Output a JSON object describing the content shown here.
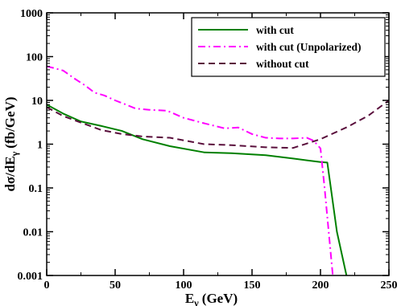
{
  "chart_data": {
    "type": "line",
    "xlabel": "E",
    "xlabel_sub": "γ",
    "xlabel_unit": "(GeV)",
    "ylabel_pre": "dσ/dE",
    "ylabel_sub": "γ",
    "ylabel_unit": "(fb/GeV)",
    "xlim": [
      0,
      250
    ],
    "ylim": [
      0.001,
      1000
    ],
    "y_scale": "log",
    "x_ticks": [
      0,
      50,
      100,
      150,
      200,
      250
    ],
    "x_tick_labels": [
      "0",
      "50",
      "100",
      "150",
      "200",
      "250"
    ],
    "y_ticks": [
      0.001,
      0.01,
      0.1,
      1,
      10,
      100,
      1000
    ],
    "y_tick_labels": [
      "0.001",
      "0.01",
      "0.1",
      "1",
      "10",
      "100",
      "1000"
    ],
    "grid": false,
    "legend_position": "top-right",
    "series": [
      {
        "name": "with cut",
        "color": "#008000",
        "dash": "solid",
        "x": [
          0,
          12,
          25,
          40,
          55,
          70,
          90,
          115,
          135,
          160,
          180,
          200,
          205,
          212,
          219
        ],
        "y": [
          8,
          5,
          3.3,
          2.6,
          2.0,
          1.3,
          0.9,
          0.65,
          0.62,
          0.56,
          0.47,
          0.39,
          0.38,
          0.01,
          0.001
        ]
      },
      {
        "name": "with cut (Unpolarized)",
        "color": "#ff00ff",
        "dash": "dash-dot",
        "x": [
          0,
          5,
          12,
          20,
          28,
          35,
          42,
          50,
          58,
          65,
          75,
          88,
          100,
          115,
          130,
          140,
          150,
          160,
          170,
          180,
          190,
          195,
          200,
          203,
          206,
          209
        ],
        "y": [
          60,
          55,
          48,
          32,
          22,
          15,
          13,
          10,
          8,
          6.5,
          6.1,
          5.8,
          4.0,
          3.0,
          2.3,
          2.4,
          1.7,
          1.4,
          1.35,
          1.35,
          1.4,
          1.2,
          0.8,
          0.1,
          0.01,
          0.001
        ]
      },
      {
        "name": "without cut",
        "color": "#5a0f3c",
        "dash": "dashed",
        "x": [
          0,
          12,
          25,
          40,
          55,
          70,
          90,
          115,
          135,
          160,
          180,
          200,
          220,
          235,
          250
        ],
        "y": [
          7,
          4.4,
          3.1,
          2.1,
          1.7,
          1.5,
          1.4,
          1.0,
          0.95,
          0.85,
          0.82,
          1.3,
          2.5,
          4.5,
          10
        ]
      }
    ]
  }
}
